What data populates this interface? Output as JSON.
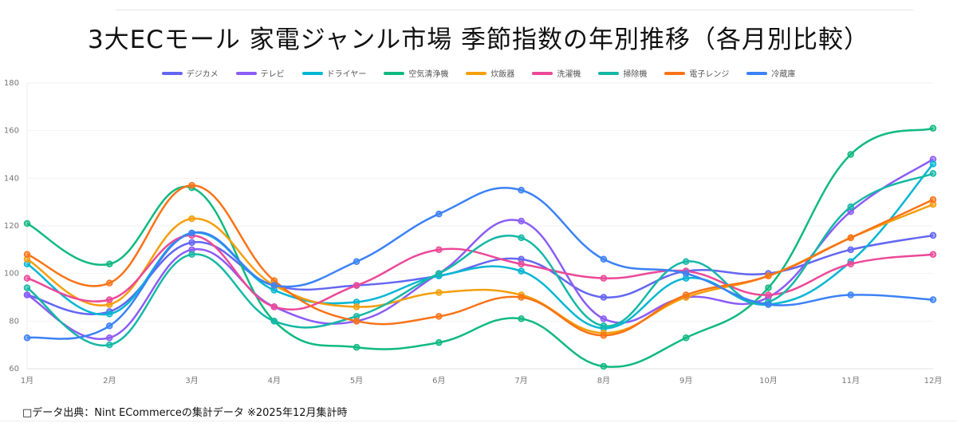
{
  "chart_data": {
    "type": "line",
    "title": "3大ECモール  家電ジャンル市場  季節指数の年別推移（各月別比較）",
    "xlabel": "",
    "ylabel": "",
    "ylim": [
      60,
      180
    ],
    "yticks": [
      60,
      80,
      100,
      120,
      140,
      160,
      180
    ],
    "grid": true,
    "legend_position": "top",
    "categories": [
      "1月",
      "2月",
      "3月",
      "4月",
      "5月",
      "6月",
      "7月",
      "8月",
      "9月",
      "10月",
      "11月",
      "12月"
    ],
    "series": [
      {
        "name": "デジカメ",
        "color": "#6366f1",
        "values": [
          91,
          84,
          113,
          95,
          95,
          99,
          106,
          90,
          101,
          100,
          110,
          116
        ]
      },
      {
        "name": "テレビ",
        "color": "#8b5cf6",
        "values": [
          91,
          73,
          110,
          86,
          80,
          100,
          122,
          81,
          90,
          90,
          126,
          148
        ]
      },
      {
        "name": "ドライヤー",
        "color": "#06b6d4",
        "values": [
          104,
          83,
          117,
          93,
          88,
          99,
          101,
          77,
          98,
          87,
          105,
          146
        ]
      },
      {
        "name": "空気清浄機",
        "color": "#10b981",
        "values": [
          121,
          104,
          136,
          80,
          69,
          71,
          81,
          61,
          73,
          94,
          150,
          161
        ]
      },
      {
        "name": "炊飯器",
        "color": "#f59e0b",
        "values": [
          106,
          87,
          123,
          95,
          86,
          92,
          91,
          75,
          90,
          99,
          115,
          129
        ]
      },
      {
        "name": "洗濯機",
        "color": "#ec4899",
        "values": [
          98,
          89,
          116,
          86,
          95,
          110,
          104,
          98,
          101,
          91,
          104,
          108
        ]
      },
      {
        "name": "掃除機",
        "color": "#14b8a6",
        "values": [
          94,
          70,
          108,
          80,
          82,
          100,
          115,
          78,
          105,
          88,
          128,
          142
        ]
      },
      {
        "name": "電子レンジ",
        "color": "#f97316",
        "values": [
          108,
          96,
          137,
          97,
          80,
          82,
          90,
          74,
          91,
          99,
          115,
          131
        ]
      },
      {
        "name": "冷蔵庫",
        "color": "#3b82f6",
        "values": [
          73,
          78,
          117,
          95,
          105,
          125,
          135,
          106,
          100,
          87,
          91,
          89
        ]
      }
    ]
  },
  "footer": "□データ出典：Nint ECommerceの集計データ ※2025年12月集計時"
}
